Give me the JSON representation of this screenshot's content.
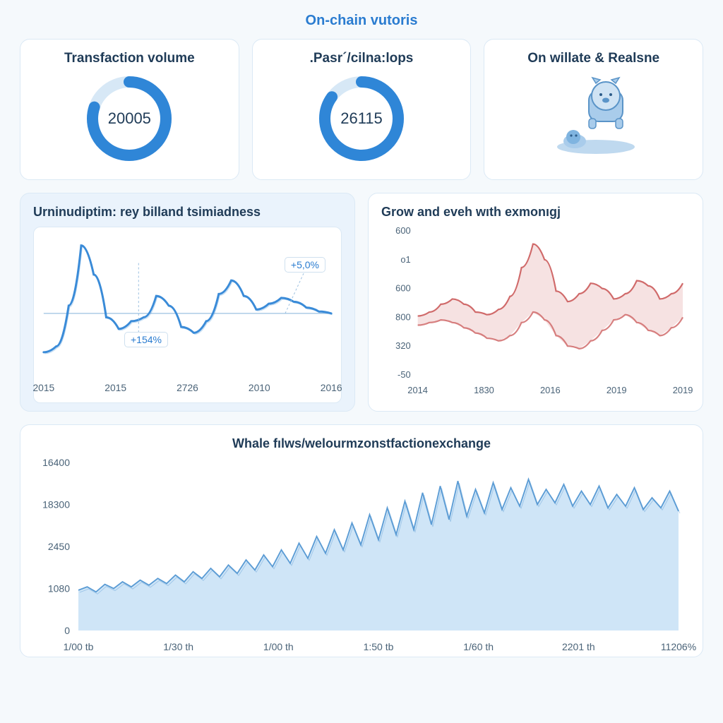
{
  "page_title": "On-chain vutoris",
  "colors": {
    "bg": "#f5f9fc",
    "card_border": "#dbe9f5",
    "text_dark": "#1f3b57",
    "text_muted": "#4a6378",
    "accent_blue": "#2a7cd0",
    "donut_fg": "#2f86d7",
    "donut_bg": "#d7e8f6",
    "chart_blue_line": "#3a8bd8",
    "chart_blue_area": "#cfe5f7",
    "chart_red_line": "#d06a6a",
    "chart_red_area": "#f2d6d6",
    "grid": "#e4edf5"
  },
  "kpis": {
    "card1": {
      "title": "Transfaction volume",
      "value": "20005",
      "donut_pct": 80,
      "donut_fg": "#2f86d7",
      "donut_bg": "#d7e8f6",
      "donut_thickness": 16,
      "donut_radius": 52
    },
    "card2": {
      "title": ".Pasr´/cilna:lops",
      "value": "26115",
      "donut_pct": 85,
      "donut_fg": "#2f86d7",
      "donut_bg": "#d7e8f6",
      "donut_thickness": 16,
      "donut_radius": 52
    },
    "card3": {
      "title": "On willate & Realsne",
      "illus_color": "#7fb4e0"
    }
  },
  "mid_left": {
    "title": "Urninudiptim: rey billand tsimiadness",
    "type": "line",
    "callout_top": "+5,0%",
    "callout_bottom": "+154%",
    "x_labels": [
      "2015",
      "2015",
      "2726",
      "2010",
      "2016"
    ],
    "line_color": "#3a8bd8",
    "line_width": 3,
    "baseline_color": "#9cc0e0",
    "data": [
      60,
      66,
      108,
      170,
      140,
      96,
      84,
      92,
      96,
      118,
      108,
      86,
      80,
      92,
      120,
      134,
      118,
      104,
      110,
      116,
      112,
      106,
      102,
      100
    ],
    "baseline_y": 100,
    "ylim": [
      40,
      180
    ]
  },
  "mid_right": {
    "title": "Grow and eveh wıth exmonıgj",
    "type": "area-multi",
    "y_labels": [
      "600",
      "o1",
      "600",
      "800",
      "320",
      "-50"
    ],
    "x_labels": [
      "2014",
      "1830",
      "2016",
      "2019",
      "2019"
    ],
    "line_color": "#d06a6a",
    "area_color": "#f2d6d6",
    "line_width": 2.2,
    "series_a": [
      95,
      98,
      104,
      108,
      104,
      98,
      96,
      100,
      110,
      132,
      150,
      138,
      114,
      106,
      112,
      120,
      116,
      108,
      112,
      122,
      118,
      108,
      112,
      120
    ],
    "series_b": [
      88,
      90,
      92,
      90,
      86,
      82,
      78,
      76,
      80,
      90,
      98,
      92,
      80,
      72,
      70,
      76,
      84,
      92,
      96,
      90,
      84,
      80,
      86,
      94
    ],
    "ylim": [
      50,
      160
    ]
  },
  "bottom": {
    "title": "Whale fılws/welourmzonstfactionexchange",
    "type": "area",
    "y_labels": [
      "16400",
      "18300",
      "2450",
      "1080",
      "0"
    ],
    "x_labels": [
      "1/00 tb",
      "1/30 th",
      "1/00 th",
      "1:50 tb",
      "1/60 th",
      "2201 th",
      "11206%"
    ],
    "line_color": "#5a9bd4",
    "area_color": "#cfe5f7",
    "line_width": 1.8,
    "data": [
      48,
      52,
      46,
      55,
      50,
      58,
      52,
      60,
      54,
      62,
      56,
      66,
      58,
      70,
      62,
      74,
      64,
      78,
      68,
      84,
      72,
      90,
      76,
      96,
      80,
      104,
      86,
      112,
      92,
      120,
      96,
      128,
      102,
      138,
      108,
      146,
      114,
      154,
      120,
      164,
      126,
      172,
      132,
      178,
      136,
      168,
      140,
      176,
      144,
      170,
      148,
      180,
      150,
      168,
      152,
      174,
      148,
      166,
      150,
      172,
      146,
      162,
      148,
      170,
      144,
      158,
      146,
      166,
      142
    ],
    "ylim": [
      0,
      200
    ]
  }
}
